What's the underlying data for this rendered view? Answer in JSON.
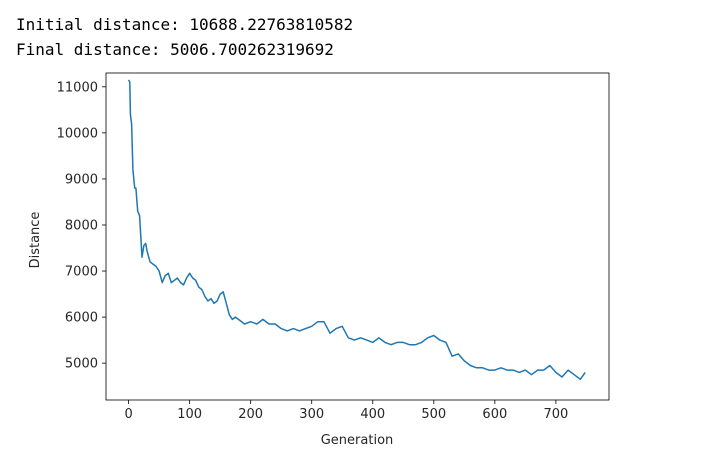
{
  "output": {
    "initial_line": "Initial distance: 10688.22763810582",
    "final_line": "Final distance: 5006.700262319692"
  },
  "chart_data": {
    "type": "line",
    "xlabel": "Generation",
    "ylabel": "Distance",
    "xlim": [
      -37,
      787
    ],
    "ylim": [
      4200,
      11300
    ],
    "xticks": [
      0,
      100,
      200,
      300,
      400,
      500,
      600,
      700
    ],
    "yticks": [
      5000,
      6000,
      7000,
      8000,
      9000,
      10000,
      11000
    ],
    "grid": false,
    "series_color": "#1f77b4",
    "series": [
      {
        "x": [
          0,
          2,
          3,
          5,
          7,
          10,
          12,
          15,
          18,
          22,
          25,
          28,
          30,
          35,
          40,
          45,
          50,
          55,
          60,
          65,
          70,
          75,
          80,
          85,
          90,
          95,
          100,
          105,
          110,
          115,
          120,
          125,
          130,
          135,
          140,
          145,
          150,
          155,
          160,
          165,
          170,
          175,
          180,
          190,
          200,
          210,
          220,
          230,
          240,
          250,
          260,
          270,
          280,
          290,
          300,
          310,
          320,
          330,
          340,
          350,
          360,
          370,
          380,
          390,
          400,
          410,
          420,
          430,
          440,
          450,
          460,
          470,
          480,
          490,
          500,
          510,
          520,
          530,
          540,
          550,
          560,
          570,
          580,
          590,
          600,
          610,
          620,
          630,
          640,
          650,
          660,
          670,
          680,
          690,
          700,
          710,
          720,
          730,
          740,
          748
        ],
        "y": [
          11150,
          11100,
          10400,
          10200,
          9200,
          8800,
          8800,
          8300,
          8200,
          7300,
          7550,
          7600,
          7450,
          7200,
          7150,
          7100,
          7000,
          6750,
          6900,
          6950,
          6750,
          6800,
          6850,
          6750,
          6700,
          6850,
          6950,
          6850,
          6800,
          6650,
          6600,
          6450,
          6350,
          6400,
          6300,
          6350,
          6500,
          6550,
          6300,
          6050,
          5950,
          6000,
          5950,
          5850,
          5900,
          5850,
          5950,
          5850,
          5850,
          5750,
          5700,
          5750,
          5700,
          5750,
          5800,
          5900,
          5900,
          5650,
          5750,
          5800,
          5550,
          5500,
          5550,
          5500,
          5450,
          5550,
          5450,
          5400,
          5450,
          5450,
          5400,
          5400,
          5450,
          5550,
          5600,
          5500,
          5450,
          5150,
          5200,
          5050,
          4950,
          4900,
          4900,
          4850,
          4850,
          4900,
          4850,
          4850,
          4800,
          4850,
          4750,
          4850,
          4850,
          4950,
          4800,
          4700,
          4850,
          4750,
          4650,
          4800
        ]
      }
    ]
  }
}
